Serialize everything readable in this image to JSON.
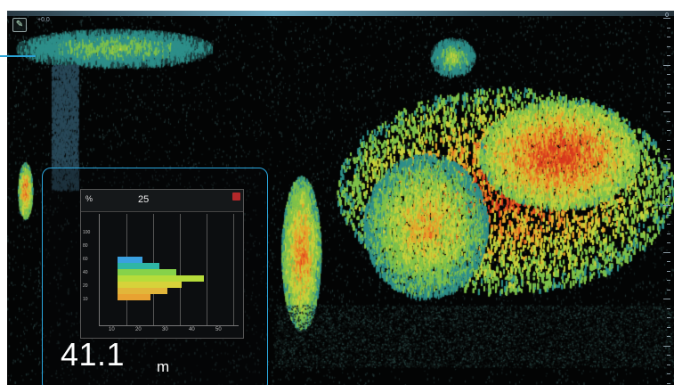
{
  "app": {
    "edit_glyph": "✎",
    "top_left_label": "+0.0",
    "top_right_label": "0"
  },
  "scale": {
    "labels": [
      "",
      "",
      "",
      "",
      "",
      ""
    ]
  },
  "histogram": {
    "unit_label": "%",
    "unit_sub": "",
    "value": "25",
    "value_sub": "",
    "info_mid": "",
    "info_right": "",
    "y_ticks": [
      "100",
      "80",
      "60",
      "40",
      "20",
      "10"
    ],
    "x_ticks": [
      "10",
      "20",
      "30",
      "40",
      "50"
    ],
    "bars": [
      {
        "size": 18,
        "level": 0.18,
        "color": "#3aa0e0"
      },
      {
        "size": 20,
        "level": 0.3,
        "color": "#2fb6a5"
      },
      {
        "size": 25,
        "level": 0.42,
        "color": "#86d24a"
      },
      {
        "size": 30,
        "level": 0.62,
        "color": "#b6dc3a"
      },
      {
        "size": 26,
        "level": 0.46,
        "color": "#d6d23a"
      },
      {
        "size": 22,
        "level": 0.36,
        "color": "#e2b63a"
      },
      {
        "size": 18,
        "level": 0.24,
        "color": "#e8a232"
      }
    ]
  },
  "readout": {
    "depth_value": "41.1",
    "depth_unit": "m"
  },
  "colors": {
    "panel_border": "#2aa7df",
    "accent": "#2aa3d6",
    "echo_palette": [
      "#1a3a3a",
      "#2e8f8a",
      "#7fc24a",
      "#c8d23c",
      "#e6a52c",
      "#e86a22",
      "#d83a1e"
    ]
  }
}
